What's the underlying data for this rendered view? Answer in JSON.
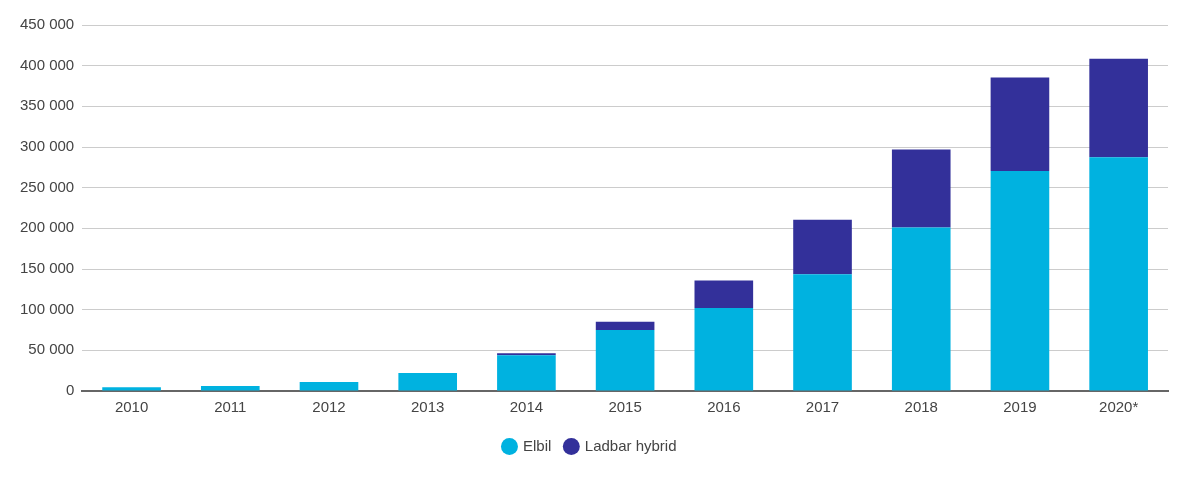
{
  "chart_data": {
    "type": "bar",
    "stacked": true,
    "categories": [
      "2010",
      "2011",
      "2012",
      "2013",
      "2014",
      "2015",
      "2016",
      "2017",
      "2018",
      "2019",
      "2020*"
    ],
    "series": [
      {
        "name": "Elbil",
        "color": "#00b2e0",
        "values": [
          4500,
          6000,
          11000,
          22000,
          44000,
          75000,
          102000,
          143500,
          201000,
          270500,
          287500
        ]
      },
      {
        "name": "Ladbar hybrid",
        "color": "#33309a",
        "values": [
          0,
          0,
          0,
          0,
          2300,
          10000,
          34000,
          67000,
          96000,
          115000,
          121000
        ]
      }
    ],
    "ylim": [
      0,
      450000
    ],
    "yticks": [
      {
        "value": 0,
        "label": "0"
      },
      {
        "value": 50000,
        "label": "50 000"
      },
      {
        "value": 100000,
        "label": "100 000"
      },
      {
        "value": 150000,
        "label": "150 000"
      },
      {
        "value": 200000,
        "label": "200 000"
      },
      {
        "value": 250000,
        "label": "250 000"
      },
      {
        "value": 300000,
        "label": "300 000"
      },
      {
        "value": 350000,
        "label": "350 000"
      },
      {
        "value": 400000,
        "label": "400 000"
      },
      {
        "value": 450000,
        "label": "450 000"
      }
    ],
    "grid": "y",
    "legend": "bottom"
  }
}
